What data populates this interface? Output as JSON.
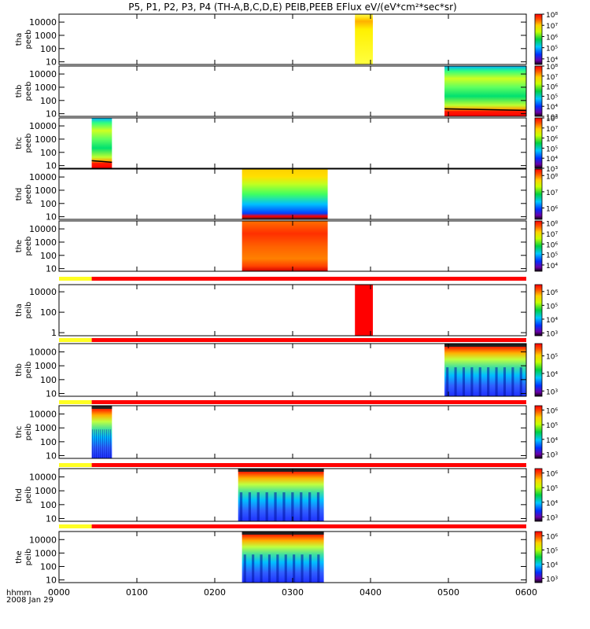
{
  "title": "P5, P1, P2, P3, P4 (TH-A,B,C,D,E) PEIB,PEEB EFlux eV/(eV*cm²*sec*sr)",
  "chart_data": {
    "type": "heatmap",
    "x_ticks": [
      "0000",
      "0100",
      "0200",
      "0300",
      "0400",
      "0500",
      "0600"
    ],
    "x_range_hours": [
      0,
      6
    ],
    "footer": {
      "label": "hhmm",
      "date": "2008 Jan 29"
    },
    "panels": [
      {
        "probe": "tha",
        "product": "peeb",
        "bar_above": false,
        "yticks": [
          "10000",
          "1000",
          "100",
          "10"
        ],
        "ytick_exps": [
          4,
          3,
          2,
          1
        ],
        "y_range_exp": [
          0.8,
          4.6
        ],
        "cbar_ticks": [
          "10⁸",
          "10⁷",
          "10⁶",
          "10⁵",
          "10⁴"
        ],
        "cbar_exps": [
          8,
          7,
          6,
          5,
          4
        ],
        "cbar_range": [
          3.5,
          8
        ],
        "blocks": [
          {
            "t0": 3.8,
            "t1": 4.03,
            "type": "yellow"
          }
        ]
      },
      {
        "probe": "thb",
        "product": "peeb",
        "bar_above": false,
        "yticks": [
          "10000",
          "1000",
          "100",
          "10"
        ],
        "ytick_exps": [
          4,
          3,
          2,
          1
        ],
        "y_range_exp": [
          0.8,
          4.6
        ],
        "cbar_ticks": [
          "10⁸",
          "10⁷",
          "10⁶",
          "10⁵",
          "10⁴",
          "10³"
        ],
        "cbar_exps": [
          8,
          7,
          6,
          5,
          4,
          3
        ],
        "cbar_range": [
          3,
          8
        ],
        "blocks": [
          {
            "t0": 4.95,
            "t1": 6.0,
            "type": "electron"
          }
        ]
      },
      {
        "probe": "thc",
        "product": "peeb",
        "bar_above": false,
        "yticks": [
          "10000",
          "1000",
          "100",
          "10"
        ],
        "ytick_exps": [
          4,
          3,
          2,
          1
        ],
        "y_range_exp": [
          0.8,
          4.6
        ],
        "cbar_ticks": [
          "10⁸",
          "10⁷",
          "10⁶",
          "10⁵",
          "10⁴",
          "10³"
        ],
        "cbar_exps": [
          8,
          7,
          6,
          5,
          4,
          3
        ],
        "cbar_range": [
          3,
          8
        ],
        "blocks": [
          {
            "t0": 0.42,
            "t1": 0.68,
            "type": "electron"
          }
        ]
      },
      {
        "probe": "thd",
        "product": "peeb",
        "bar_above": false,
        "yticks": [
          "10000",
          "1000",
          "100",
          "10"
        ],
        "ytick_exps": [
          4,
          3,
          2,
          1
        ],
        "y_range_exp": [
          0.8,
          4.6
        ],
        "cbar_ticks": [
          "10⁸",
          "10⁷",
          "10⁶"
        ],
        "cbar_exps": [
          8,
          7,
          6
        ],
        "cbar_range": [
          5.3,
          8.4
        ],
        "blocks": [
          {
            "t0": 2.35,
            "t1": 3.45,
            "type": "electron2"
          }
        ]
      },
      {
        "probe": "the",
        "product": "peeb",
        "bar_above": false,
        "yticks": [
          "10000",
          "1000",
          "100",
          "10"
        ],
        "ytick_exps": [
          4,
          3,
          2,
          1
        ],
        "y_range_exp": [
          0.8,
          4.6
        ],
        "cbar_ticks": [
          "10⁸",
          "10⁷",
          "10⁶",
          "10⁵",
          "10⁴"
        ],
        "cbar_exps": [
          8,
          7,
          6,
          5,
          4
        ],
        "cbar_range": [
          3.4,
          8.2
        ],
        "blocks": [
          {
            "t0": 2.35,
            "t1": 3.45,
            "type": "electron3"
          }
        ]
      },
      {
        "probe": "tha",
        "product": "peib",
        "bar_above": true,
        "yticks": [
          "10000",
          "100",
          "1"
        ],
        "ytick_exps": [
          4,
          2,
          0
        ],
        "y_range_exp": [
          -0.3,
          4.7
        ],
        "cbar_ticks": [
          "10⁶",
          "10⁵",
          "10⁴",
          "10³"
        ],
        "cbar_exps": [
          6,
          5,
          4,
          3
        ],
        "cbar_range": [
          2.8,
          6.5
        ],
        "blocks": [
          {
            "t0": 3.8,
            "t1": 4.03,
            "type": "redsolid"
          }
        ]
      },
      {
        "probe": "thb",
        "product": "peib",
        "bar_above": true,
        "yticks": [
          "10000",
          "1000",
          "100",
          "10"
        ],
        "ytick_exps": [
          4,
          3,
          2,
          1
        ],
        "y_range_exp": [
          0.8,
          4.6
        ],
        "cbar_ticks": [
          "10⁵",
          "10⁴",
          "10³"
        ],
        "cbar_exps": [
          5,
          4,
          3
        ],
        "cbar_range": [
          2.7,
          5.7
        ],
        "blocks": [
          {
            "t0": 4.95,
            "t1": 6.0,
            "type": "ion"
          }
        ]
      },
      {
        "probe": "thc",
        "product": "peib",
        "bar_above": true,
        "yticks": [
          "10000",
          "1000",
          "100",
          "10"
        ],
        "ytick_exps": [
          4,
          3,
          2,
          1
        ],
        "y_range_exp": [
          0.8,
          4.6
        ],
        "cbar_ticks": [
          "10⁶",
          "10⁵",
          "10⁴",
          "10³"
        ],
        "cbar_exps": [
          6,
          5,
          4,
          3
        ],
        "cbar_range": [
          2.7,
          6.3
        ],
        "blocks": [
          {
            "t0": 0.42,
            "t1": 0.68,
            "type": "ion"
          }
        ]
      },
      {
        "probe": "thd",
        "product": "peib",
        "bar_above": true,
        "yticks": [
          "10000",
          "1000",
          "100",
          "10"
        ],
        "ytick_exps": [
          4,
          3,
          2,
          1
        ],
        "y_range_exp": [
          0.8,
          4.6
        ],
        "cbar_ticks": [
          "10⁶",
          "10⁵",
          "10⁴",
          "10³"
        ],
        "cbar_exps": [
          6,
          5,
          4,
          3
        ],
        "cbar_range": [
          2.7,
          6.3
        ],
        "blocks": [
          {
            "t0": 2.3,
            "t1": 3.4,
            "type": "ion"
          }
        ]
      },
      {
        "probe": "the",
        "product": "peib",
        "bar_above": true,
        "yticks": [
          "10000",
          "1000",
          "100",
          "10"
        ],
        "ytick_exps": [
          4,
          3,
          2,
          1
        ],
        "y_range_exp": [
          0.8,
          4.6
        ],
        "cbar_ticks": [
          "10⁶",
          "10⁵",
          "10⁴",
          "10³"
        ],
        "cbar_exps": [
          6,
          5,
          4,
          3
        ],
        "cbar_range": [
          2.7,
          6.3
        ],
        "blocks": [
          {
            "t0": 2.35,
            "t1": 3.4,
            "type": "ion"
          }
        ]
      }
    ],
    "mode_bar": {
      "yellow_until_hours": 0.42,
      "after_color": "red"
    }
  },
  "colors": {
    "bar_yellow": "#ffff22",
    "bar_red": "#ff0000",
    "axis": "#000000"
  }
}
